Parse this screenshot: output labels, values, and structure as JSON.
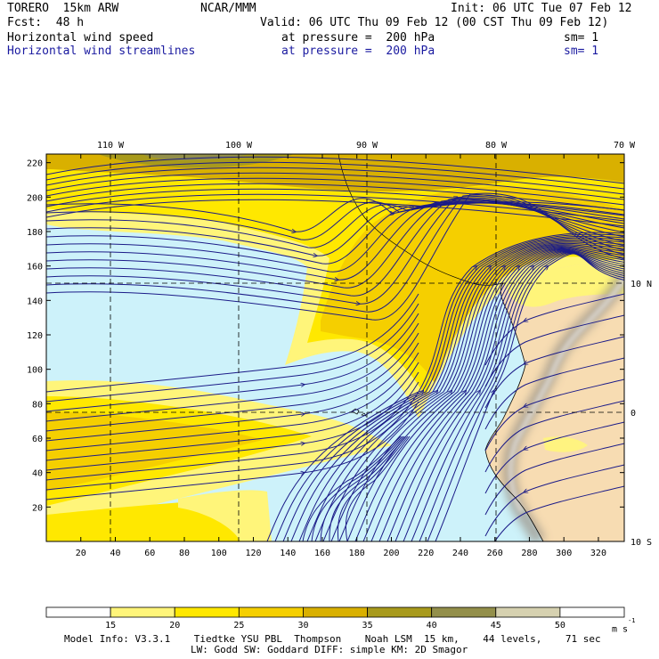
{
  "header": {
    "model": "TORERO  15km ARW",
    "org": "NCAR/MMM",
    "init": "Init: 06 UTC Tue 07 Feb 12",
    "fcst": "Fcst:  48 h",
    "valid": "Valid: 06 UTC Thu 09 Feb 12 (00 CST Thu 09 Feb 12)",
    "fields": [
      {
        "name": "Horizontal wind speed",
        "level": "at pressure =  200 hPa",
        "sm": "sm= 1"
      },
      {
        "name": "Horizontal wind streamlines",
        "level": "at pressure =  200 hPa",
        "sm": "sm= 1"
      }
    ]
  },
  "map": {
    "top_lon_labels": [
      "110 W",
      "100 W",
      "90 W",
      "80 W",
      "70 W"
    ],
    "right_lat_labels": [
      "10 N",
      "0",
      "10 S"
    ],
    "y_ticks": [
      "20",
      "40",
      "60",
      "80",
      "100",
      "120",
      "140",
      "160",
      "180",
      "200",
      "220"
    ],
    "x_ticks": [
      "20",
      "40",
      "60",
      "80",
      "100",
      "120",
      "140",
      "160",
      "180",
      "200",
      "220",
      "240",
      "260",
      "280",
      "300",
      "320"
    ],
    "colors": {
      "ocean_calm": "#cdf2fa",
      "land": "#f7dcb2",
      "streamline": "#1b1b88",
      "grid": "#000000"
    }
  },
  "colorbar": {
    "labels": [
      "15",
      "20",
      "25",
      "30",
      "35",
      "40",
      "45",
      "50"
    ],
    "unit": "m s",
    "unit_sup": "-1",
    "colors": [
      "#ffffff",
      "#fff57a",
      "#ffe800",
      "#f5cf00",
      "#d9b000",
      "#a89a1c",
      "#938f4a",
      "#d6d1b0",
      "#ffffff"
    ]
  },
  "footer": {
    "line1": "Model Info: V3.3.1    Tiedtke YSU PBL  Thompson    Noah LSM  15 km,    44 levels,    71 sec",
    "line2": "LW: Godd SW: Goddard DIFF: simple KM: 2D Smagor"
  }
}
